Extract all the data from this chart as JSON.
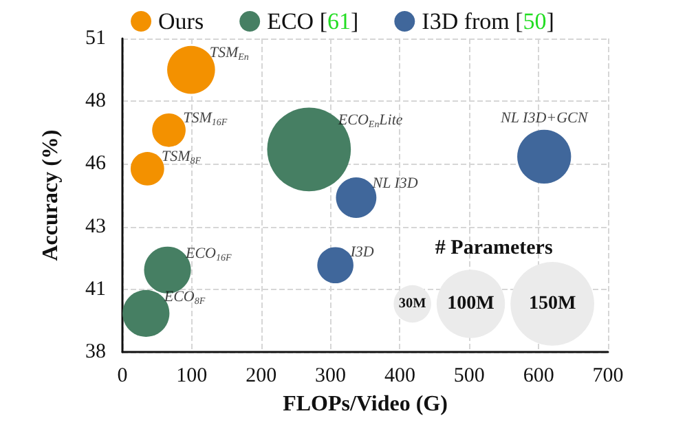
{
  "chart_data": {
    "type": "bubble",
    "xlabel": "FLOPs/Video (G)",
    "ylabel": "Accuracy (%)",
    "xlim": [
      0,
      700
    ],
    "xticks": [
      0,
      100,
      200,
      300,
      400,
      500,
      600,
      700
    ],
    "ylim": [
      38,
      51
    ],
    "yticks": [
      38,
      {
        "value": 40.6,
        "label": "41"
      },
      {
        "value": 43.2,
        "label": "43"
      },
      {
        "value": 45.8,
        "label": "46"
      },
      {
        "value": 48.4,
        "label": "48"
      },
      51
    ],
    "grid": true,
    "legend": "top",
    "marker": "circle",
    "series": [
      {
        "name": "Ours",
        "color": "#f39100",
        "x": [
          99,
          67,
          36
        ],
        "values": [
          49.7,
          47.2,
          45.6
        ],
        "sizes": [
          49,
          24,
          24
        ]
      },
      {
        "name": "ECO [61]",
        "color": "#467f63",
        "x": [
          269,
          65,
          34
        ],
        "values": [
          46.4,
          41.4,
          39.6
        ],
        "sizes": [
          150,
          47,
          47
        ]
      },
      {
        "name": "I3D from [50]",
        "color": "#40679b",
        "x": [
          337,
          608,
          307
        ],
        "values": [
          44.4,
          46.1,
          41.6
        ],
        "sizes": [
          35,
          62,
          28
        ]
      }
    ],
    "size_legend": [
      {
        "value": 30,
        "label": "30M"
      },
      {
        "value": 100,
        "label": "100M"
      },
      {
        "value": 150,
        "label": "150M"
      }
    ],
    "annotations": [
      {
        "text": "TSM$_{En}$",
        "x": 99,
        "y": 49.7
      },
      {
        "text": "TSM$_{16F}$",
        "x": 67,
        "y": 47.2
      },
      {
        "text": "TSM$_{8F}$",
        "x": 36,
        "y": 45.6
      },
      {
        "text": "ECO$_{En}$Lite",
        "x": 269,
        "y": 46.4
      },
      {
        "text": "ECO$_{16F}$",
        "x": 65,
        "y": 41.4
      },
      {
        "text": "ECO$_{8F}$",
        "x": 34,
        "y": 39.6
      },
      {
        "text": "NL I3D",
        "x": 337,
        "y": 44.4
      },
      {
        "text": "NL I3D+GCN",
        "x": 608,
        "y": 46.1
      },
      {
        "text": "I3D",
        "x": 307,
        "y": 41.6
      },
      "# Parameters"
    ]
  }
}
